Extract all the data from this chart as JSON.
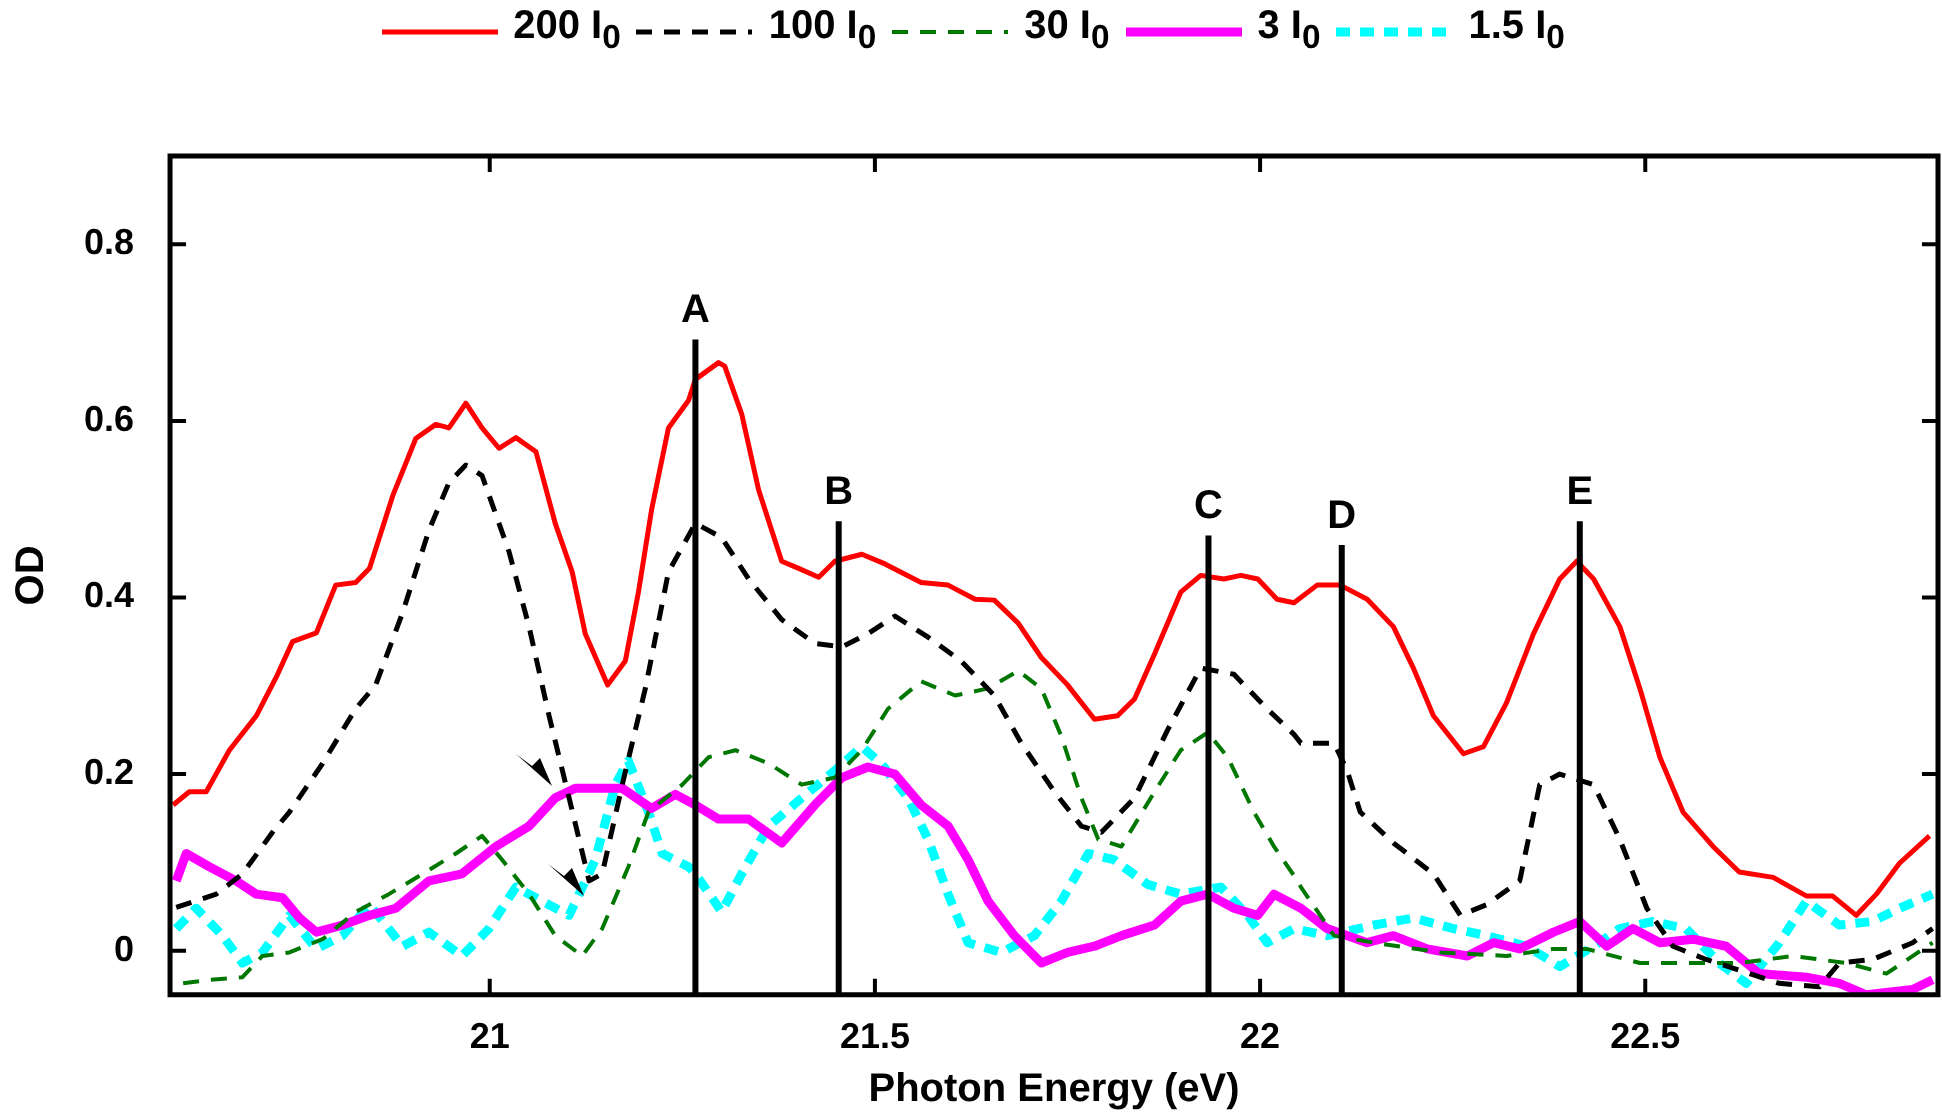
{
  "chart_data": {
    "type": "line",
    "xlabel": "Photon Energy (eV)",
    "ylabel": "OD",
    "xlim": [
      20.585,
      22.88
    ],
    "ylim": [
      -0.05,
      0.9
    ],
    "xticks": [
      21,
      21.5,
      22,
      22.5
    ],
    "yticks": [
      0,
      0.2,
      0.4,
      0.6,
      0.8
    ],
    "grid": false,
    "legend": "top",
    "marker": "none",
    "ref_lines": [
      {
        "axis": "x",
        "value": 21.267,
        "label": "A",
        "color": "#000000"
      },
      {
        "axis": "x",
        "value": 21.453,
        "label": "B",
        "color": "#000000"
      },
      {
        "axis": "x",
        "value": 21.933,
        "label": "C",
        "color": "#000000"
      },
      {
        "axis": "x",
        "value": 22.106,
        "label": "D",
        "color": "#000000"
      },
      {
        "axis": "x",
        "value": 22.415,
        "label": "E",
        "color": "#000000"
      }
    ],
    "series": [
      {
        "name": "200 I$_{0}$",
        "color": "#ff0000",
        "line_style": "solid",
        "x": [
          20.589,
          20.61,
          20.632,
          20.662,
          20.697,
          20.723,
          20.744,
          20.775,
          20.8,
          20.826,
          20.844,
          20.874,
          20.904,
          20.93,
          20.947,
          20.969,
          20.99,
          21.012,
          21.034,
          21.06,
          21.085,
          21.107,
          21.124,
          21.153,
          21.176,
          21.193,
          21.21,
          21.232,
          21.258,
          21.267,
          21.297,
          21.305,
          21.327,
          21.349,
          21.379,
          21.401,
          21.427,
          21.448,
          21.483,
          21.513,
          21.56,
          21.595,
          21.63,
          21.655,
          21.686,
          21.716,
          21.75,
          21.785,
          21.815,
          21.837,
          21.863,
          21.897,
          21.923,
          21.953,
          21.975,
          21.997,
          22.022,
          22.044,
          22.074,
          22.104,
          22.139,
          22.173,
          22.199,
          22.225,
          22.264,
          22.29,
          22.32,
          22.355,
          22.389,
          22.411,
          22.433,
          22.467,
          22.493,
          22.519,
          22.549,
          22.588,
          22.622,
          22.666,
          22.709,
          22.743,
          22.774,
          22.8,
          22.83,
          22.869
        ],
        "values": [
          0.165,
          0.18,
          0.18,
          0.227,
          0.266,
          0.31,
          0.35,
          0.36,
          0.414,
          0.417,
          0.433,
          0.515,
          0.58,
          0.596,
          0.592,
          0.62,
          0.592,
          0.569,
          0.581,
          0.565,
          0.484,
          0.429,
          0.359,
          0.301,
          0.328,
          0.406,
          0.499,
          0.592,
          0.623,
          0.647,
          0.666,
          0.662,
          0.608,
          0.522,
          0.441,
          0.433,
          0.423,
          0.441,
          0.449,
          0.438,
          0.417,
          0.414,
          0.398,
          0.397,
          0.371,
          0.332,
          0.301,
          0.262,
          0.266,
          0.285,
          0.336,
          0.406,
          0.425,
          0.421,
          0.425,
          0.421,
          0.398,
          0.394,
          0.414,
          0.414,
          0.398,
          0.367,
          0.32,
          0.266,
          0.223,
          0.231,
          0.281,
          0.359,
          0.421,
          0.441,
          0.421,
          0.367,
          0.297,
          0.219,
          0.157,
          0.118,
          0.089,
          0.083,
          0.062,
          0.062,
          0.04,
          0.064,
          0.099,
          0.13
        ]
      },
      {
        "name": "100 I$_{0}$",
        "color": "#000000",
        "line_style": "dashed",
        "x": [
          20.593,
          20.645,
          20.679,
          20.718,
          20.74,
          20.783,
          20.826,
          20.852,
          20.887,
          20.921,
          20.947,
          20.969,
          20.99,
          21.025,
          21.051,
          21.077,
          21.103,
          21.129,
          21.146,
          21.172,
          21.202,
          21.232,
          21.267,
          21.301,
          21.336,
          21.379,
          21.422,
          21.457,
          21.491,
          21.526,
          21.569,
          21.612,
          21.655,
          21.69,
          21.733,
          21.768,
          21.794,
          21.837,
          21.88,
          21.923,
          21.966,
          22.009,
          22.044,
          22.053,
          22.096,
          22.113,
          22.13,
          22.173,
          22.225,
          22.26,
          22.294,
          22.337,
          22.363,
          22.389,
          22.433,
          22.467,
          22.502,
          22.536,
          22.579,
          22.622,
          22.674,
          22.726,
          22.752,
          22.795,
          22.847,
          22.873
        ],
        "values": [
          0.049,
          0.064,
          0.087,
          0.134,
          0.157,
          0.212,
          0.274,
          0.301,
          0.383,
          0.476,
          0.53,
          0.55,
          0.538,
          0.452,
          0.367,
          0.266,
          0.173,
          0.079,
          0.087,
          0.188,
          0.297,
          0.429,
          0.484,
          0.468,
          0.421,
          0.375,
          0.348,
          0.344,
          0.359,
          0.379,
          0.355,
          0.328,
          0.289,
          0.235,
          0.18,
          0.141,
          0.134,
          0.173,
          0.25,
          0.32,
          0.313,
          0.274,
          0.245,
          0.235,
          0.235,
          0.204,
          0.157,
          0.122,
          0.087,
          0.04,
          0.052,
          0.079,
          0.188,
          0.2,
          0.188,
          0.126,
          0.048,
          0.005,
          -0.01,
          -0.022,
          -0.037,
          -0.041,
          -0.014,
          -0.01,
          0.009,
          0.025
        ]
      },
      {
        "name": "30 I$_{0}$",
        "color": "#007700",
        "line_style": "dashed",
        "x": [
          20.602,
          20.636,
          20.679,
          20.705,
          20.74,
          20.783,
          20.826,
          20.869,
          20.913,
          20.956,
          20.99,
          21.016,
          21.051,
          21.085,
          21.12,
          21.146,
          21.18,
          21.206,
          21.25,
          21.284,
          21.319,
          21.362,
          21.405,
          21.448,
          21.483,
          21.517,
          21.56,
          21.604,
          21.647,
          21.686,
          21.716,
          21.742,
          21.768,
          21.79,
          21.82,
          21.863,
          21.897,
          21.932,
          21.958,
          21.992,
          22.018,
          22.044,
          22.053,
          22.096,
          22.148,
          22.234,
          22.32,
          22.381,
          22.424,
          22.493,
          22.553,
          22.622,
          22.692,
          22.761,
          22.813,
          22.873
        ],
        "values": [
          -0.037,
          -0.033,
          -0.03,
          -0.006,
          -0.002,
          0.013,
          0.044,
          0.064,
          0.087,
          0.11,
          0.13,
          0.103,
          0.064,
          0.017,
          -0.006,
          0.025,
          0.095,
          0.157,
          0.188,
          0.219,
          0.227,
          0.212,
          0.188,
          0.196,
          0.227,
          0.274,
          0.305,
          0.289,
          0.297,
          0.317,
          0.297,
          0.243,
          0.173,
          0.126,
          0.118,
          0.18,
          0.227,
          0.247,
          0.219,
          0.157,
          0.118,
          0.085,
          0.072,
          0.017,
          0.009,
          -0.002,
          -0.006,
          0.002,
          0.002,
          -0.014,
          -0.014,
          -0.014,
          -0.006,
          -0.014,
          -0.026,
          0.009
        ]
      },
      {
        "name": "3 I$_{0}$",
        "color": "#ff00ff",
        "line_style": "solid",
        "x": [
          20.593,
          20.606,
          20.636,
          20.671,
          20.697,
          20.731,
          20.753,
          20.775,
          20.809,
          20.844,
          20.878,
          20.921,
          20.964,
          21.008,
          21.051,
          21.085,
          21.111,
          21.146,
          21.172,
          21.21,
          21.241,
          21.267,
          21.297,
          21.336,
          21.379,
          21.422,
          21.457,
          21.491,
          21.526,
          21.56,
          21.595,
          21.621,
          21.647,
          21.681,
          21.716,
          21.75,
          21.785,
          21.82,
          21.863,
          21.897,
          21.932,
          21.966,
          21.997,
          22.018,
          22.053,
          22.087,
          22.139,
          22.173,
          22.217,
          22.269,
          22.303,
          22.337,
          22.381,
          22.415,
          22.45,
          22.484,
          22.519,
          22.562,
          22.605,
          22.648,
          22.709,
          22.752,
          22.787,
          22.847,
          22.873
        ],
        "values": [
          0.079,
          0.11,
          0.095,
          0.079,
          0.064,
          0.06,
          0.037,
          0.021,
          0.029,
          0.04,
          0.048,
          0.079,
          0.087,
          0.118,
          0.141,
          0.173,
          0.184,
          0.184,
          0.184,
          0.161,
          0.177,
          0.165,
          0.149,
          0.149,
          0.122,
          0.165,
          0.196,
          0.208,
          0.2,
          0.165,
          0.141,
          0.103,
          0.056,
          0.017,
          -0.014,
          -0.002,
          0.005,
          0.017,
          0.029,
          0.056,
          0.064,
          0.048,
          0.04,
          0.064,
          0.048,
          0.025,
          0.009,
          0.017,
          0.002,
          -0.006,
          0.009,
          0.002,
          0.021,
          0.033,
          0.005,
          0.025,
          0.009,
          0.013,
          0.005,
          -0.026,
          -0.03,
          -0.037,
          -0.05,
          -0.044,
          -0.033
        ]
      },
      {
        "name": "1.5 I$_{0}$",
        "color": "#00ffff",
        "line_style": "dotted",
        "x": [
          20.593,
          20.619,
          20.653,
          20.679,
          20.705,
          20.74,
          20.775,
          20.809,
          20.844,
          20.887,
          20.921,
          20.964,
          20.999,
          21.034,
          21.068,
          21.103,
          21.137,
          21.163,
          21.18,
          21.206,
          21.224,
          21.258,
          21.267,
          21.301,
          21.327,
          21.362,
          21.405,
          21.448,
          21.483,
          21.508,
          21.543,
          21.569,
          21.595,
          21.621,
          21.664,
          21.707,
          21.742,
          21.777,
          21.81,
          21.854,
          21.897,
          21.949,
          21.984,
          22.009,
          22.044,
          22.087,
          22.148,
          22.199,
          22.251,
          22.294,
          22.346,
          22.389,
          22.433,
          22.467,
          22.51,
          22.553,
          22.596,
          22.631,
          22.674,
          22.709,
          22.752,
          22.795,
          22.83,
          22.873
        ],
        "values": [
          0.025,
          0.048,
          0.017,
          -0.014,
          -0.002,
          0.04,
          0.002,
          0.017,
          0.052,
          0.005,
          0.021,
          -0.006,
          0.025,
          0.072,
          0.056,
          0.04,
          0.103,
          0.188,
          0.215,
          0.157,
          0.11,
          0.095,
          0.087,
          0.044,
          0.087,
          0.141,
          0.173,
          0.204,
          0.231,
          0.212,
          0.173,
          0.126,
          0.064,
          0.009,
          -0.002,
          0.017,
          0.056,
          0.11,
          0.103,
          0.075,
          0.064,
          0.072,
          0.04,
          0.009,
          0.025,
          0.017,
          0.029,
          0.037,
          0.025,
          0.017,
          0.005,
          -0.018,
          0.005,
          0.025,
          0.033,
          0.025,
          -0.014,
          -0.037,
          0.009,
          0.056,
          0.029,
          0.033,
          0.048,
          0.064
        ]
      }
    ]
  }
}
